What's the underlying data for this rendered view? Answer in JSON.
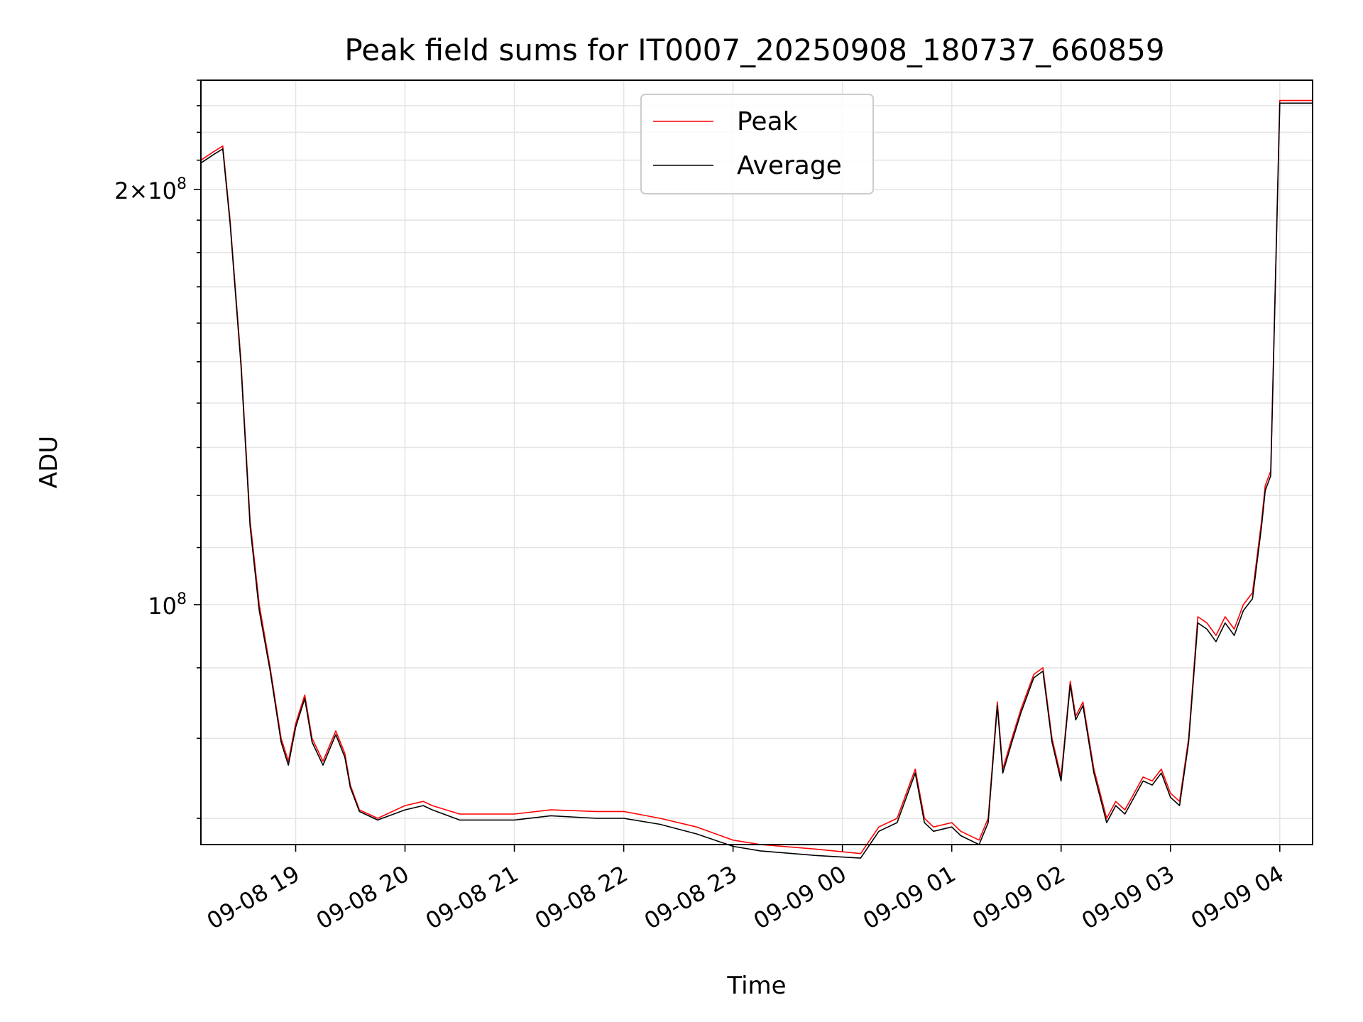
{
  "chart_data": {
    "type": "line",
    "title": "Peak field sums for IT0007_20250908_180737_660859",
    "xlabel": "Time",
    "ylabel": "ADU",
    "y_scale": "log",
    "grid": true,
    "legend_position": "top-center",
    "x_range": [
      "2025-09-08 18:08",
      "2025-09-09 04:18"
    ],
    "y_range": [
      67000000,
      240000000
    ],
    "x_ticks": [
      "09-08 19",
      "09-08 20",
      "09-08 21",
      "09-08 22",
      "09-08 23",
      "09-09 00",
      "09-09 01",
      "09-09 02",
      "09-09 03",
      "09-09 04"
    ],
    "y_ticks": [
      {
        "value": 100000000,
        "mantissa": "",
        "exponent": "8"
      },
      {
        "value": 200000000,
        "mantissa": "2",
        "exponent": "8"
      }
    ],
    "series": [
      {
        "name": "Peak",
        "color": "#ff0000",
        "x": [
          "2025-09-08 18:08",
          "2025-09-08 18:15",
          "2025-09-08 18:20",
          "2025-09-08 18:24",
          "2025-09-08 18:30",
          "2025-09-08 18:35",
          "2025-09-08 18:40",
          "2025-09-08 18:46",
          "2025-09-08 18:52",
          "2025-09-08 18:56",
          "2025-09-08 19:00",
          "2025-09-08 19:05",
          "2025-09-08 19:09",
          "2025-09-08 19:15",
          "2025-09-08 19:22",
          "2025-09-08 19:27",
          "2025-09-08 19:30",
          "2025-09-08 19:35",
          "2025-09-08 19:45",
          "2025-09-08 20:00",
          "2025-09-08 20:10",
          "2025-09-08 20:15",
          "2025-09-08 20:30",
          "2025-09-08 21:00",
          "2025-09-08 21:20",
          "2025-09-08 21:45",
          "2025-09-08 22:00",
          "2025-09-08 22:20",
          "2025-09-08 22:40",
          "2025-09-08 23:00",
          "2025-09-08 23:15",
          "2025-09-08 23:45",
          "2025-09-09 00:10",
          "2025-09-09 00:20",
          "2025-09-09 00:30",
          "2025-09-09 00:40",
          "2025-09-09 00:45",
          "2025-09-09 00:50",
          "2025-09-09 01:00",
          "2025-09-09 01:05",
          "2025-09-09 01:15",
          "2025-09-09 01:20",
          "2025-09-09 01:25",
          "2025-09-09 01:28",
          "2025-09-09 01:33",
          "2025-09-09 01:38",
          "2025-09-09 01:45",
          "2025-09-09 01:50",
          "2025-09-09 01:55",
          "2025-09-09 02:00",
          "2025-09-09 02:05",
          "2025-09-09 02:08",
          "2025-09-09 02:12",
          "2025-09-09 02:18",
          "2025-09-09 02:25",
          "2025-09-09 02:30",
          "2025-09-09 02:35",
          "2025-09-09 02:45",
          "2025-09-09 02:50",
          "2025-09-09 02:55",
          "2025-09-09 03:00",
          "2025-09-09 03:05",
          "2025-09-09 03:10",
          "2025-09-09 03:15",
          "2025-09-09 03:20",
          "2025-09-09 03:25",
          "2025-09-09 03:30",
          "2025-09-09 03:35",
          "2025-09-09 03:40",
          "2025-09-09 03:45",
          "2025-09-09 03:50",
          "2025-09-09 03:52",
          "2025-09-09 03:55",
          "2025-09-09 04:00",
          "2025-09-09 04:18"
        ],
        "values": [
          210000000,
          213000000,
          215000000,
          190000000,
          150000000,
          115000000,
          100000000,
          90000000,
          80000000,
          77000000,
          82000000,
          86000000,
          80000000,
          77000000,
          81000000,
          78000000,
          74000000,
          71000000,
          70000000,
          71500000,
          72000000,
          71500000,
          70500000,
          70500000,
          71000000,
          70800000,
          70800000,
          70000000,
          69000000,
          67500000,
          67000000,
          66500000,
          66000000,
          69000000,
          70000000,
          76000000,
          70000000,
          69000000,
          69500000,
          68500000,
          67500000,
          70000000,
          85000000,
          76000000,
          80000000,
          84000000,
          89000000,
          90000000,
          80000000,
          75000000,
          88000000,
          83000000,
          85000000,
          76000000,
          70000000,
          72000000,
          71000000,
          75000000,
          74500000,
          76000000,
          73000000,
          72000000,
          80000000,
          98000000,
          97000000,
          95000000,
          98000000,
          96000000,
          100000000,
          102000000,
          115000000,
          122000000,
          125000000,
          232000000,
          232000000
        ]
      },
      {
        "name": "Average",
        "color": "#000000",
        "x": [
          "2025-09-08 18:08",
          "2025-09-08 18:15",
          "2025-09-08 18:20",
          "2025-09-08 18:24",
          "2025-09-08 18:30",
          "2025-09-08 18:35",
          "2025-09-08 18:40",
          "2025-09-08 18:46",
          "2025-09-08 18:52",
          "2025-09-08 18:56",
          "2025-09-08 19:00",
          "2025-09-08 19:05",
          "2025-09-08 19:09",
          "2025-09-08 19:15",
          "2025-09-08 19:22",
          "2025-09-08 19:27",
          "2025-09-08 19:30",
          "2025-09-08 19:35",
          "2025-09-08 19:45",
          "2025-09-08 20:00",
          "2025-09-08 20:10",
          "2025-09-08 20:15",
          "2025-09-08 20:30",
          "2025-09-08 21:00",
          "2025-09-08 21:20",
          "2025-09-08 21:45",
          "2025-09-08 22:00",
          "2025-09-08 22:20",
          "2025-09-08 22:40",
          "2025-09-08 23:00",
          "2025-09-08 23:15",
          "2025-09-08 23:45",
          "2025-09-09 00:10",
          "2025-09-09 00:20",
          "2025-09-09 00:30",
          "2025-09-09 00:40",
          "2025-09-09 00:45",
          "2025-09-09 00:50",
          "2025-09-09 01:00",
          "2025-09-09 01:05",
          "2025-09-09 01:15",
          "2025-09-09 01:20",
          "2025-09-09 01:25",
          "2025-09-09 01:28",
          "2025-09-09 01:33",
          "2025-09-09 01:38",
          "2025-09-09 01:45",
          "2025-09-09 01:50",
          "2025-09-09 01:55",
          "2025-09-09 02:00",
          "2025-09-09 02:05",
          "2025-09-09 02:08",
          "2025-09-09 02:12",
          "2025-09-09 02:18",
          "2025-09-09 02:25",
          "2025-09-09 02:30",
          "2025-09-09 02:35",
          "2025-09-09 02:45",
          "2025-09-09 02:50",
          "2025-09-09 02:55",
          "2025-09-09 03:00",
          "2025-09-09 03:05",
          "2025-09-09 03:10",
          "2025-09-09 03:15",
          "2025-09-09 03:20",
          "2025-09-09 03:25",
          "2025-09-09 03:30",
          "2025-09-09 03:35",
          "2025-09-09 03:40",
          "2025-09-09 03:45",
          "2025-09-09 03:50",
          "2025-09-09 03:52",
          "2025-09-09 03:55",
          "2025-09-09 04:00",
          "2025-09-09 04:18"
        ],
        "values": [
          209000000,
          212000000,
          214000000,
          189000000,
          149000000,
          114000000,
          99000000,
          89500000,
          79500000,
          76500000,
          81500000,
          85500000,
          79500000,
          76500000,
          80500000,
          77500000,
          73700000,
          70800000,
          69800000,
          71000000,
          71500000,
          71000000,
          69800000,
          69800000,
          70300000,
          70000000,
          70000000,
          69300000,
          68200000,
          66800000,
          66300000,
          65800000,
          65500000,
          68500000,
          69500000,
          75500000,
          69500000,
          68500000,
          69000000,
          68000000,
          67000000,
          69500000,
          84500000,
          75500000,
          79500000,
          83500000,
          88500000,
          89500000,
          79500000,
          74500000,
          87500000,
          82500000,
          84500000,
          75500000,
          69500000,
          71500000,
          70500000,
          74500000,
          74000000,
          75500000,
          72500000,
          71500000,
          79500000,
          97000000,
          96000000,
          94000000,
          97000000,
          95000000,
          99000000,
          101000000,
          114000000,
          121000000,
          124000000,
          231000000,
          231000000
        ]
      }
    ]
  }
}
